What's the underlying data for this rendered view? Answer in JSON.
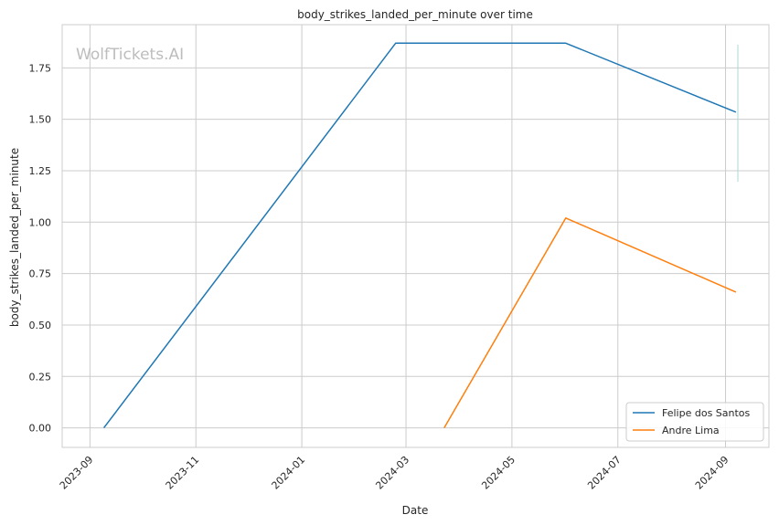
{
  "chart_data": {
    "type": "line",
    "title": "body_strikes_landed_per_minute over time",
    "xlabel": "Date",
    "ylabel": "body_strikes_landed_per_minute",
    "watermark": "WolfTickets.AI",
    "x_ticks": [
      "2023-09",
      "2023-11",
      "2024-01",
      "2024-03",
      "2024-05",
      "2024-07",
      "2024-09"
    ],
    "y_ticks": [
      "0.00",
      "0.25",
      "0.50",
      "0.75",
      "1.00",
      "1.25",
      "1.50",
      "1.75"
    ],
    "xlim": [
      "2023-08-16",
      "2024-09-26"
    ],
    "ylim": [
      -0.095,
      1.96
    ],
    "grid": true,
    "legend_position": "lower-right",
    "series": [
      {
        "name": "Felipe dos Santos",
        "color": "#1f77b4",
        "x": [
          "2023-09-09",
          "2024-02-24",
          "2024-06-01",
          "2024-09-07"
        ],
        "y": [
          0.0,
          1.87,
          1.87,
          1.535
        ]
      },
      {
        "name": "Andre Lima",
        "color": "#ff7f0e",
        "x": [
          "2024-03-23",
          "2024-06-01",
          "2024-09-07"
        ],
        "y": [
          0.0,
          1.02,
          0.66
        ]
      }
    ]
  }
}
